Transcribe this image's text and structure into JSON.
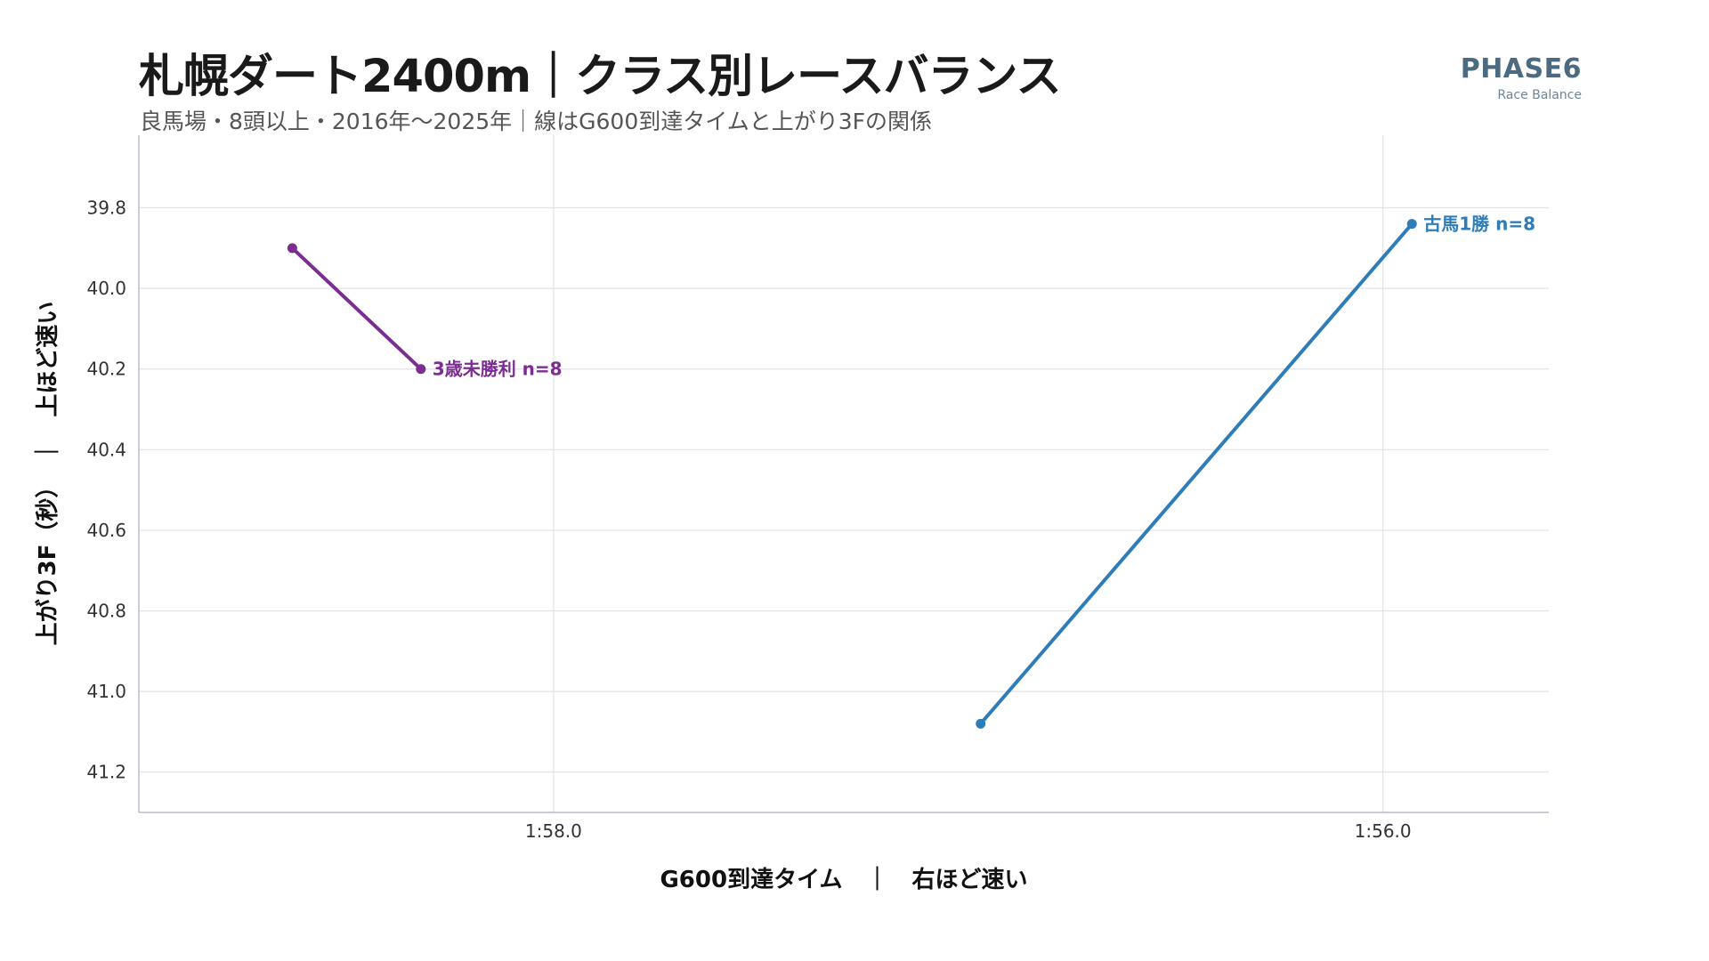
{
  "header": {
    "title": "札幌ダート2400m｜クラス別レースバランス",
    "subtitle": "良馬場・8頭以上・2016年〜2025年｜線はG600到達タイムと上がり3Fの関係",
    "brand_name": "PHASE6",
    "brand_sub": "Race Balance"
  },
  "chart_data": {
    "type": "line",
    "title": "札幌ダート2400m｜クラス別レースバランス",
    "subtitle": "良馬場・8頭以上・2016年〜2025年｜線はG600到達タイムと上がり3Fの関係",
    "xlabel": "G600到達タイム　｜　右ほど速い",
    "ylabel": "上がり3F（秒）　｜　上ほど速い",
    "x_unit": "seconds",
    "x_reversed": true,
    "y_reversed": true,
    "xlim": [
      119.0,
      115.6
    ],
    "ylim": [
      39.62,
      41.3
    ],
    "x_ticks": [
      118.0,
      116.0
    ],
    "x_tick_labels": [
      "1:58.0",
      "1:56.0"
    ],
    "y_ticks": [
      39.8,
      40.0,
      40.2,
      40.4,
      40.6,
      40.8,
      41.0,
      41.2
    ],
    "y_tick_labels": [
      "39.8",
      "40.0",
      "40.2",
      "40.4",
      "40.6",
      "40.8",
      "41.0",
      "41.2"
    ],
    "grid": true,
    "series": [
      {
        "name": "3歳未勝利",
        "label": "3歳未勝利  n=8",
        "n": 8,
        "color": "#7b2d90",
        "points": [
          {
            "x": 118.63,
            "y": 39.9
          },
          {
            "x": 118.32,
            "y": 40.2
          }
        ]
      },
      {
        "name": "古馬1勝",
        "label": "古馬1勝  n=8",
        "n": 8,
        "color": "#2e7db8",
        "points": [
          {
            "x": 116.97,
            "y": 41.08
          },
          {
            "x": 115.93,
            "y": 39.84
          }
        ]
      }
    ]
  }
}
